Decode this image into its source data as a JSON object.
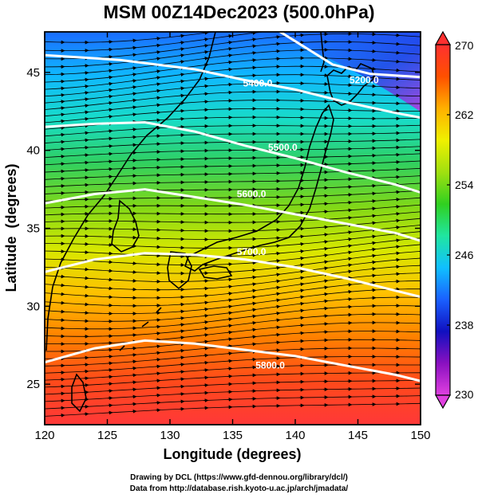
{
  "title": "MSM 00Z14Dec2023 (500.0hPa)",
  "credits": {
    "line1": "Drawing by DCL (https://www.gfd-dennou.org/library/dcl/)",
    "line2": "Data from http://database.rish.kyoto-u.ac.jp/arch/jmadata/"
  },
  "chart_data": {
    "type": "heatmap",
    "xlabel": "Longitude (degrees)",
    "ylabel": "Latitude  (degrees)",
    "xlim": [
      120,
      150
    ],
    "ylim": [
      22.4,
      47.6
    ],
    "x_ticks": [
      120,
      125,
      130,
      135,
      140,
      145,
      150
    ],
    "y_ticks": [
      25,
      30,
      35,
      40,
      45
    ],
    "colorbar": {
      "min": 230,
      "max": 270,
      "ticks": [
        230,
        238,
        246,
        254,
        262,
        270
      ],
      "stops": [
        "#e040e0",
        "#8a10c0",
        "#1010c0",
        "#1a60ff",
        "#10c0ff",
        "#20e6a0",
        "#30d020",
        "#a0e010",
        "#f0f000",
        "#ffb000",
        "#ff5000",
        "#ff3030"
      ]
    },
    "contours": [
      {
        "label": "5400.0",
        "points": [
          [
            120,
            46.1
          ],
          [
            126,
            45.8
          ],
          [
            132,
            45.2
          ],
          [
            136,
            44.5
          ],
          [
            140,
            43.9
          ],
          [
            144,
            43.1
          ],
          [
            148,
            42.4
          ],
          [
            150,
            42.1
          ]
        ],
        "label_at": [
          137,
          44.3
        ]
      },
      {
        "label": "5200.0",
        "points": [
          [
            138,
            48.0
          ],
          [
            141,
            46.5
          ],
          [
            143,
            45.5
          ],
          [
            146,
            44.9
          ],
          [
            150,
            44.7
          ]
        ],
        "label_at": [
          145.5,
          44.5
        ]
      },
      {
        "label": "5500.0",
        "points": [
          [
            120,
            41.5
          ],
          [
            124,
            41.7
          ],
          [
            128,
            41.8
          ],
          [
            132,
            41.2
          ],
          [
            136,
            40.3
          ],
          [
            140,
            39.5
          ],
          [
            144,
            38.6
          ],
          [
            148,
            37.8
          ],
          [
            150,
            37.3
          ]
        ],
        "label_at": [
          139,
          40.2
        ]
      },
      {
        "label": "5600.0",
        "points": [
          [
            120,
            36.6
          ],
          [
            124,
            37.2
          ],
          [
            128,
            37.5
          ],
          [
            132,
            37.0
          ],
          [
            136,
            36.5
          ],
          [
            140,
            35.9
          ],
          [
            144,
            35.3
          ],
          [
            148,
            34.7
          ],
          [
            150,
            34.2
          ]
        ],
        "label_at": [
          136.5,
          37.2
        ]
      },
      {
        "label": "5700.0",
        "points": [
          [
            120,
            32.2
          ],
          [
            124,
            33.0
          ],
          [
            128,
            33.4
          ],
          [
            132,
            33.3
          ],
          [
            136,
            33.0
          ],
          [
            140,
            32.5
          ],
          [
            144,
            31.8
          ],
          [
            148,
            31.0
          ],
          [
            150,
            30.6
          ]
        ],
        "label_at": [
          136.5,
          33.5
        ]
      },
      {
        "label": "5800.0",
        "points": [
          [
            120,
            26.4
          ],
          [
            124,
            27.3
          ],
          [
            128,
            27.8
          ],
          [
            132,
            27.6
          ],
          [
            136,
            27.2
          ],
          [
            140,
            26.8
          ],
          [
            144,
            26.2
          ],
          [
            148,
            25.6
          ],
          [
            150,
            25.2
          ]
        ],
        "label_at": [
          138,
          26.2
        ]
      }
    ],
    "grid": false
  }
}
